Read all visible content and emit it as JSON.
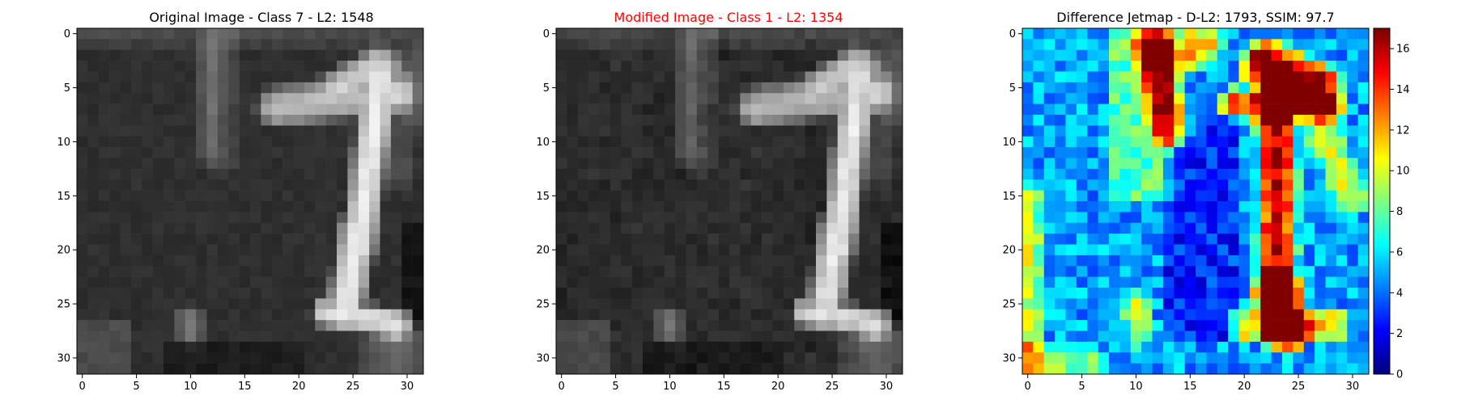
{
  "figure": {
    "panels": [
      {
        "title": "Original Image - Class 7 - L2: 1548",
        "title_color": "#000000"
      },
      {
        "title": "Modified Image - Class 1 - L2: 1354",
        "title_color": "#ff0000"
      },
      {
        "title": "Difference Jetmap - D-L2: 1793, SSIM: 97.7",
        "title_color": "#000000"
      }
    ]
  },
  "chart_data": [
    {
      "type": "heatmap",
      "title": "Original Image - Class 7 - L2: 1548",
      "colormap": "gray",
      "grid_size": [
        32,
        32
      ],
      "x_ticks": [
        "0",
        "5",
        "10",
        "15",
        "20",
        "25",
        "30"
      ],
      "y_ticks": [
        "0",
        "5",
        "10",
        "15",
        "20",
        "25",
        "30"
      ],
      "description_values": "32x32 grayscale digit image (two strokes: vertical at x 11-14 rows 0-12, L-shaped '7'/'1' stroke at x 19-30 rows 2-27)"
    },
    {
      "type": "heatmap",
      "title": "Modified Image - Class 1 - L2: 1354",
      "colormap": "gray",
      "grid_size": [
        32,
        32
      ],
      "x_ticks": [
        "0",
        "5",
        "10",
        "15",
        "20",
        "25",
        "30"
      ],
      "y_ticks": [
        "0",
        "5",
        "10",
        "15",
        "20",
        "25",
        "30"
      ]
    },
    {
      "type": "heatmap",
      "title": "Difference Jetmap - D-L2: 1793, SSIM: 97.7",
      "colormap": "jet",
      "grid_size": [
        32,
        32
      ],
      "x_ticks": [
        "0",
        "5",
        "10",
        "15",
        "20",
        "25",
        "30"
      ],
      "y_ticks": [
        "0",
        "5",
        "10",
        "15",
        "20",
        "25",
        "30"
      ],
      "colorbar": {
        "range": [
          0,
          17
        ],
        "ticks": [
          "0",
          "2",
          "4",
          "6",
          "8",
          "10",
          "12",
          "14",
          "16"
        ]
      }
    }
  ]
}
